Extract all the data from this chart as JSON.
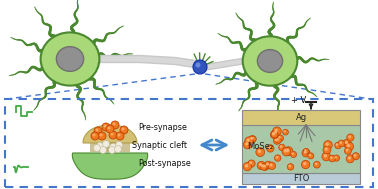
{
  "background_color": "#ffffff",
  "dashed_box_color": "#4477cc",
  "neuron_body_color": "#a8d878",
  "neuron_body_edge": "#4a8830",
  "neuron_nucleus_color": "#909090",
  "axon_color": "#c0c0c0",
  "synapse_point_color": "#4466cc",
  "pre_synapse_color": "#d4c070",
  "pre_synapse_edge": "#b0a050",
  "post_synapse_color": "#88c870",
  "post_synapse_edge": "#4a8830",
  "cleft_color": "#b8a868",
  "pre_text": "Pre-synapse",
  "cleft_text": "Synaptic cleft",
  "post_text": "Post-synapse",
  "device_ag_color": "#d8c878",
  "device_mose2_color": "#a8c8a8",
  "device_fto_color": "#b8ccd8",
  "orange_dot_color": "#f07820",
  "orange_dot_edge": "#c04000",
  "arrow_color": "#4488cc",
  "mose2_label": "MoSe₂",
  "ag_label": "Ag",
  "fto_label": "FTO",
  "voltage_label": "+ V",
  "pulse_color": "#44aa44",
  "epsc_color": "#44aa44",
  "white_dot_color": "#f0ece0",
  "white_dot_edge": "#c8c0a0"
}
